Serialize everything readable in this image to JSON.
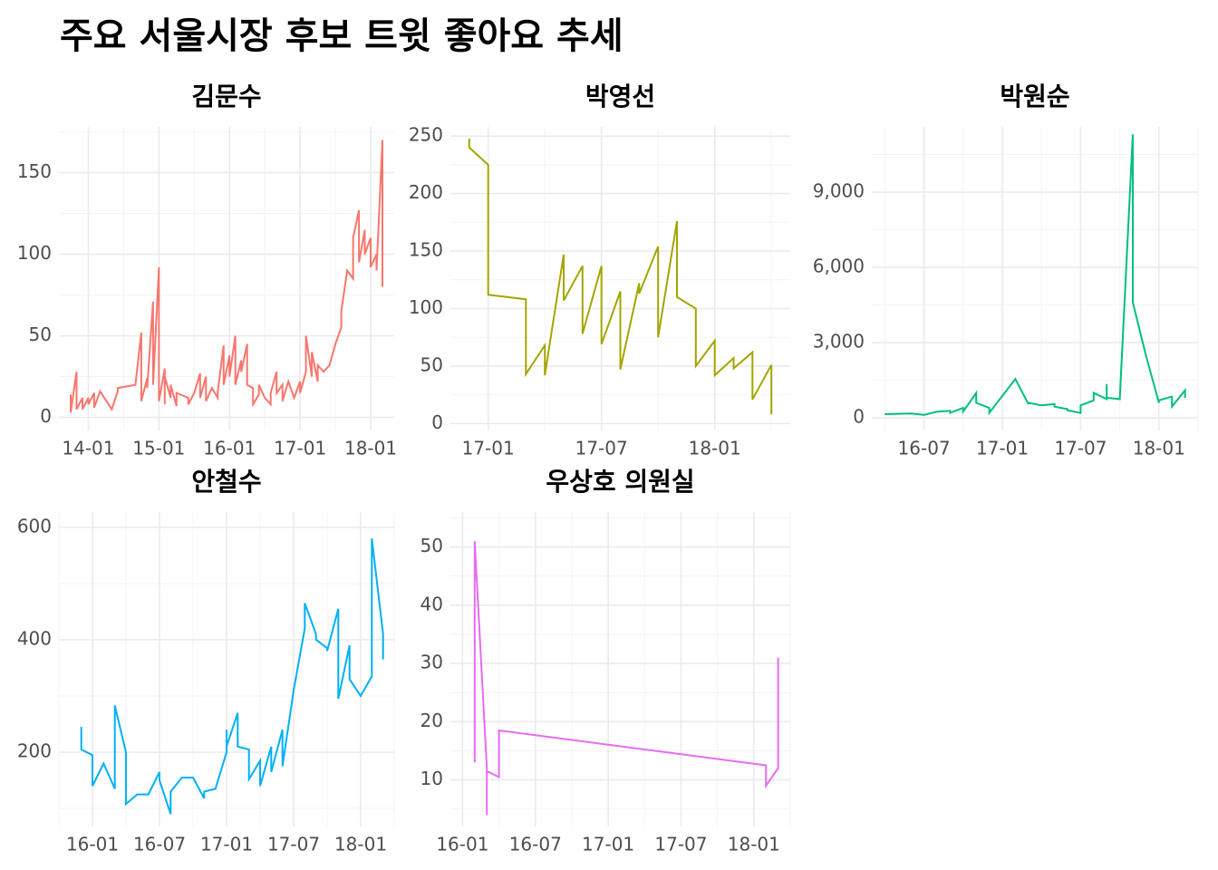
{
  "title": "주요 서울시장 후보 트윗 좋아요 추세",
  "chart_data": [
    {
      "type": "line",
      "title": "김문수",
      "color": "#F8766D",
      "grid": true,
      "xlim": [
        "2013-08",
        "2018-05"
      ],
      "xticks": [
        {
          "value": "2014-01",
          "label": "14-01"
        },
        {
          "value": "2015-01",
          "label": "15-01"
        },
        {
          "value": "2016-01",
          "label": "16-01"
        },
        {
          "value": "2017-01",
          "label": "17-01"
        },
        {
          "value": "2018-01",
          "label": "18-01"
        }
      ],
      "ylim": [
        -8,
        178
      ],
      "yticks": [
        0,
        50,
        100,
        150
      ],
      "x": [
        "2013-10",
        "2013-10",
        "2013-11",
        "2013-11",
        "2013-12",
        "2013-12",
        "2014-01",
        "2014-01",
        "2014-02",
        "2014-02",
        "2014-03",
        "2014-05",
        "2014-06",
        "2014-06",
        "2014-09",
        "2014-10",
        "2014-10",
        "2014-11",
        "2014-11",
        "2014-12",
        "2014-12",
        "2015-01",
        "2015-01",
        "2015-01",
        "2015-02",
        "2015-02",
        "2015-02",
        "2015-03",
        "2015-03",
        "2015-04",
        "2015-04",
        "2015-06",
        "2015-06",
        "2015-07",
        "2015-08",
        "2015-08",
        "2015-09",
        "2015-09",
        "2015-10",
        "2015-11",
        "2015-11",
        "2015-12",
        "2015-12",
        "2016-01",
        "2016-01",
        "2016-02",
        "2016-02",
        "2016-02",
        "2016-03",
        "2016-03",
        "2016-04",
        "2016-04",
        "2016-05",
        "2016-05",
        "2016-06",
        "2016-06",
        "2016-07",
        "2016-08",
        "2016-08",
        "2016-09",
        "2016-09",
        "2016-10",
        "2016-10",
        "2016-11",
        "2016-12",
        "2017-01",
        "2017-01",
        "2017-02",
        "2017-02",
        "2017-03",
        "2017-03",
        "2017-04",
        "2017-04",
        "2017-05",
        "2017-06",
        "2017-07",
        "2017-08",
        "2017-08",
        "2017-09",
        "2017-10",
        "2017-10",
        "2017-11",
        "2017-11",
        "2017-12",
        "2017-12",
        "2018-01",
        "2018-01",
        "2018-02",
        "2018-02",
        "2018-03",
        "2018-03"
      ],
      "values": [
        14,
        3,
        28,
        5,
        12,
        5,
        12,
        8,
        15,
        6,
        16,
        5,
        16,
        18,
        20,
        52,
        10,
        24,
        18,
        71,
        20,
        92,
        35,
        10,
        30,
        8,
        25,
        12,
        20,
        7,
        15,
        12,
        8,
        15,
        27,
        12,
        25,
        10,
        18,
        12,
        16,
        44,
        20,
        38,
        25,
        50,
        30,
        20,
        35,
        28,
        45,
        20,
        18,
        8,
        14,
        20,
        12,
        8,
        15,
        28,
        15,
        20,
        10,
        22,
        12,
        22,
        15,
        28,
        50,
        25,
        40,
        22,
        32,
        28,
        32,
        45,
        55,
        65,
        90,
        85,
        110,
        127,
        95,
        115,
        100,
        110,
        92,
        100,
        90,
        170,
        80
      ]
    },
    {
      "type": "line",
      "title": "박영선",
      "color": "#A3A500",
      "grid": true,
      "xlim": [
        "2016-11",
        "2018-05"
      ],
      "xticks": [
        {
          "value": "2017-01",
          "label": "17-01"
        },
        {
          "value": "2017-07",
          "label": "17-07"
        },
        {
          "value": "2018-01",
          "label": "18-01"
        }
      ],
      "ylim": [
        -6,
        258
      ],
      "yticks": [
        0,
        50,
        100,
        150,
        200,
        250
      ],
      "x": [
        "2016-12",
        "2016-12",
        "2017-01",
        "2017-01",
        "2017-02",
        "2017-03",
        "2017-03",
        "2017-04",
        "2017-04",
        "2017-05",
        "2017-05",
        "2017-06",
        "2017-06",
        "2017-07",
        "2017-07",
        "2017-08",
        "2017-08",
        "2017-09",
        "2017-09",
        "2017-10",
        "2017-10",
        "2017-11",
        "2017-11",
        "2017-12",
        "2017-12",
        "2018-01",
        "2018-01",
        "2018-02",
        "2018-02",
        "2018-03",
        "2018-03",
        "2018-04",
        "2018-04",
        "2018-04",
        "2018-04"
      ],
      "values": [
        248,
        240,
        225,
        112,
        110,
        108,
        43,
        68,
        42,
        147,
        107,
        137,
        78,
        137,
        69,
        115,
        47,
        122,
        113,
        154,
        75,
        176,
        110,
        100,
        50,
        72,
        42,
        57,
        48,
        62,
        21,
        51,
        23,
        24,
        8
      ]
    },
    {
      "type": "line",
      "title": "박원순",
      "color": "#00BF7D",
      "grid": true,
      "xlim": [
        "2016-03",
        "2018-04"
      ],
      "xticks": [
        {
          "value": "2016-07",
          "label": "16-07"
        },
        {
          "value": "2017-01",
          "label": "17-01"
        },
        {
          "value": "2017-07",
          "label": "17-07"
        },
        {
          "value": "2018-01",
          "label": "18-01"
        }
      ],
      "ylim": [
        -500,
        11600
      ],
      "yticks": [
        0,
        {
          "value": 3000,
          "label": "3,000"
        },
        {
          "value": 6000,
          "label": "6,000"
        },
        {
          "value": 9000,
          "label": "9,000"
        }
      ],
      "x": [
        "2016-04",
        "2016-06",
        "2016-07",
        "2016-08",
        "2016-09",
        "2016-09",
        "2016-10",
        "2016-10",
        "2016-11",
        "2016-11",
        "2016-12",
        "2016-12",
        "2017-02",
        "2017-03",
        "2017-03",
        "2017-04",
        "2017-05",
        "2017-05",
        "2017-06",
        "2017-06",
        "2017-07",
        "2017-07",
        "2017-08",
        "2017-08",
        "2017-09",
        "2017-09",
        "2017-09",
        "2017-10",
        "2017-11",
        "2017-11",
        "2017-12",
        "2018-01",
        "2018-01",
        "2018-02",
        "2018-02",
        "2018-03",
        "2018-03"
      ],
      "values": [
        150,
        180,
        120,
        250,
        280,
        200,
        400,
        250,
        1000,
        600,
        400,
        200,
        1550,
        550,
        600,
        500,
        550,
        450,
        350,
        300,
        200,
        500,
        700,
        1000,
        750,
        1350,
        800,
        750,
        11300,
        4600,
        2500,
        600,
        700,
        850,
        450,
        1100,
        800
      ]
    },
    {
      "type": "line",
      "title": "안철수",
      "color": "#00B0F6",
      "grid": true,
      "xlim": [
        "2015-10",
        "2018-04"
      ],
      "xticks": [
        {
          "value": "2016-01",
          "label": "16-01"
        },
        {
          "value": "2016-07",
          "label": "16-07"
        },
        {
          "value": "2017-01",
          "label": "17-01"
        },
        {
          "value": "2017-07",
          "label": "17-07"
        },
        {
          "value": "2018-01",
          "label": "18-01"
        }
      ],
      "ylim": [
        68,
        627
      ],
      "yticks": [
        200,
        400,
        600
      ],
      "x": [
        "2015-12",
        "2015-12",
        "2016-01",
        "2016-01",
        "2016-02",
        "2016-03",
        "2016-03",
        "2016-04",
        "2016-04",
        "2016-05",
        "2016-06",
        "2016-07",
        "2016-07",
        "2016-08",
        "2016-08",
        "2016-09",
        "2016-09",
        "2016-10",
        "2016-11",
        "2016-11",
        "2016-12",
        "2017-01",
        "2017-01",
        "2017-01",
        "2017-02",
        "2017-02",
        "2017-03",
        "2017-03",
        "2017-04",
        "2017-04",
        "2017-05",
        "2017-05",
        "2017-06",
        "2017-06",
        "2017-07",
        "2017-08",
        "2017-08",
        "2017-09",
        "2017-09",
        "2017-10",
        "2017-10",
        "2017-11",
        "2017-11",
        "2017-12",
        "2017-12",
        "2018-01",
        "2018-02",
        "2018-02",
        "2018-03",
        "2018-03"
      ],
      "values": [
        245,
        205,
        195,
        140,
        180,
        135,
        283,
        200,
        108,
        125,
        125,
        165,
        150,
        90,
        130,
        155,
        155,
        155,
        118,
        130,
        135,
        200,
        240,
        210,
        270,
        210,
        205,
        152,
        185,
        140,
        210,
        165,
        240,
        175,
        310,
        420,
        465,
        410,
        400,
        385,
        380,
        455,
        295,
        390,
        330,
        300,
        335,
        580,
        410,
        365
      ]
    },
    {
      "type": "line",
      "title": "우상호 의원실",
      "color": "#E76BF3",
      "grid": true,
      "xlim": [
        "2015-12",
        "2018-04"
      ],
      "xticks": [
        {
          "value": "2016-01",
          "label": "16-01"
        },
        {
          "value": "2016-07",
          "label": "16-07"
        },
        {
          "value": "2017-01",
          "label": "17-01"
        },
        {
          "value": "2017-07",
          "label": "17-07"
        },
        {
          "value": "2018-01",
          "label": "18-01"
        }
      ],
      "ylim": [
        2,
        56
      ],
      "yticks": [
        10,
        20,
        30,
        40,
        50
      ],
      "x": [
        "2016-02",
        "2016-02",
        "2016-03",
        "2016-03",
        "2016-03",
        "2016-04",
        "2016-04",
        "2018-02",
        "2018-02",
        "2018-03",
        "2018-03",
        "2018-03"
      ],
      "values": [
        13,
        51,
        12,
        4,
        11.5,
        10.5,
        18.5,
        12.5,
        9,
        12,
        24,
        31
      ]
    }
  ]
}
